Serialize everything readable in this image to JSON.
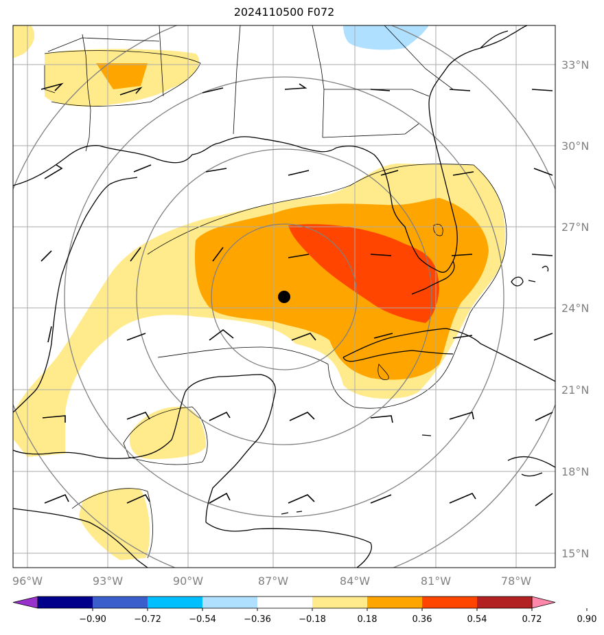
{
  "title": "2024110500 F072",
  "lat_labels": [
    "33°N",
    "30°N",
    "27°N",
    "24°N",
    "21°N",
    "18°N",
    "15°N"
  ],
  "lon_labels": [
    "96°W",
    "93°W",
    "90°W",
    "87°W",
    "84°W",
    "81°W",
    "78°W"
  ],
  "colorbar": {
    "colors": [
      "#9932cc",
      "#00008b",
      "#3a5fcd",
      "#00bfff",
      "#b0e0ff",
      "#ffffff",
      "#ffeb8c",
      "#ffa500",
      "#ff4500",
      "#b22222",
      "#ff88aa"
    ],
    "tick_labels": [
      "−0.90",
      "−0.72",
      "−0.54",
      "−0.36",
      "−0.18",
      "0.18",
      "0.36",
      "0.54",
      "0.72",
      "0.90"
    ]
  },
  "center_marker": {
    "lat": 24.4,
    "lon": -86.6
  }
}
